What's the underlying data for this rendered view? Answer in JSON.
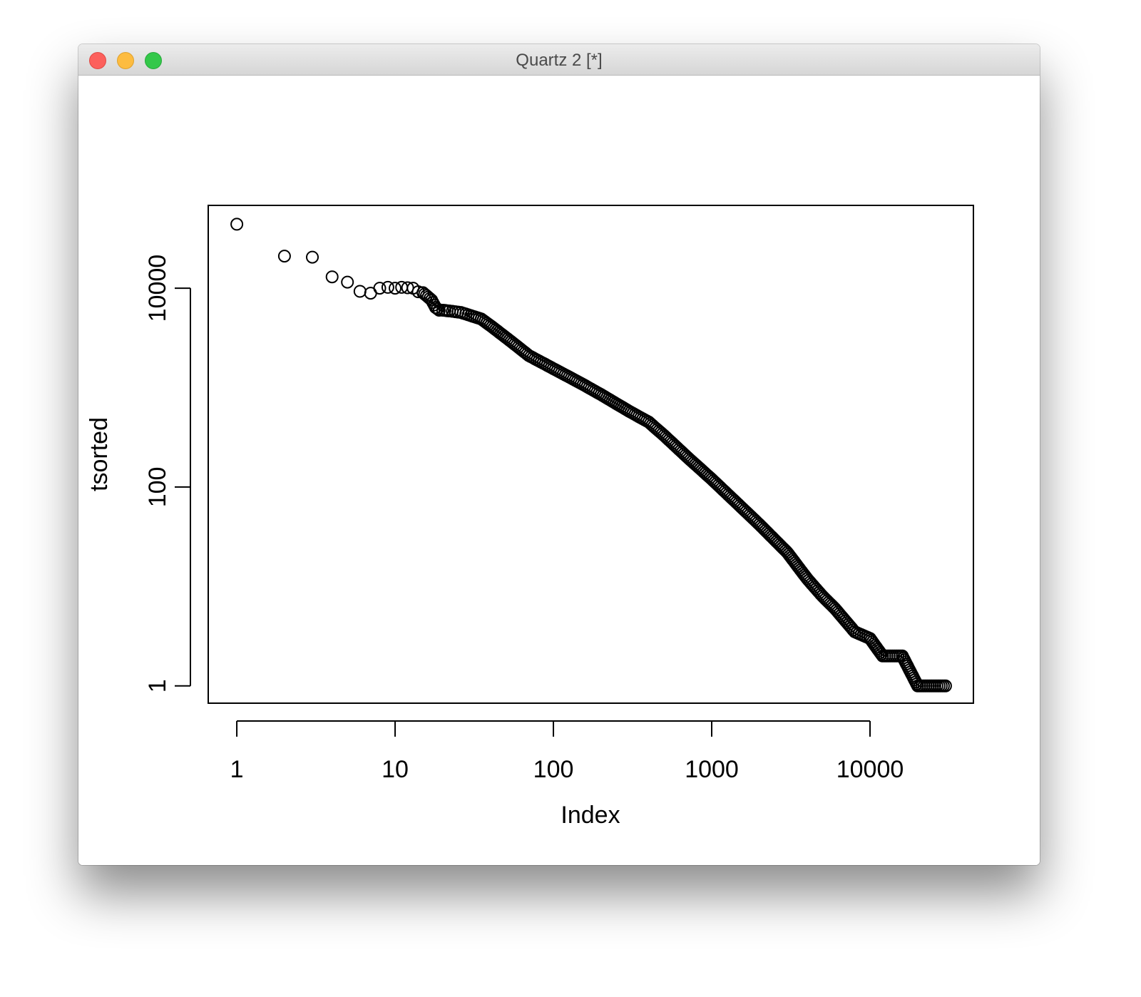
{
  "window": {
    "title": "Quartz 2 [*]",
    "buttons": {
      "close": "close",
      "minimize": "minimize",
      "zoom": "zoom"
    }
  },
  "chart_data": {
    "type": "scatter",
    "xlabel": "Index",
    "ylabel": "tsorted",
    "log_x": true,
    "log_y": true,
    "x_ticks": [
      1,
      10,
      100,
      1000,
      10000
    ],
    "x_tick_labels": [
      "1",
      "10",
      "100",
      "1000",
      "10000"
    ],
    "y_ticks": [
      1,
      100,
      10000
    ],
    "y_tick_labels": [
      "1",
      "100",
      "10000"
    ],
    "xlim": [
      0.66,
      45000
    ],
    "ylim": [
      0.67,
      68000
    ],
    "marker": "open-circle",
    "grid": false,
    "legend": "none",
    "series": [
      {
        "points": [
          [
            1,
            44000
          ],
          [
            2,
            21000
          ],
          [
            3,
            20500
          ],
          [
            4,
            13000
          ],
          [
            5,
            11500
          ],
          [
            6,
            9300
          ],
          [
            7,
            8900
          ],
          [
            8,
            10000
          ],
          [
            9,
            10200
          ],
          [
            10,
            10000
          ],
          [
            11,
            10200
          ],
          [
            12,
            10100
          ],
          [
            13,
            10000
          ],
          [
            14,
            9200
          ],
          [
            15,
            9000
          ],
          [
            17,
            7600
          ],
          [
            18,
            6400
          ],
          [
            19,
            6000
          ],
          [
            20,
            6000
          ],
          [
            22,
            5900
          ],
          [
            24,
            5800
          ],
          [
            26,
            5700
          ],
          [
            30,
            5300
          ],
          [
            35,
            4900
          ],
          [
            40,
            4200
          ],
          [
            50,
            3200
          ],
          [
            70,
            2100
          ],
          [
            100,
            1550
          ],
          [
            150,
            1100
          ],
          [
            200,
            850
          ],
          [
            300,
            580
          ],
          [
            400,
            450
          ],
          [
            500,
            330
          ],
          [
            700,
            200
          ],
          [
            1000,
            120
          ],
          [
            1500,
            65
          ],
          [
            2000,
            42
          ],
          [
            3000,
            22
          ],
          [
            4000,
            12
          ],
          [
            5000,
            8
          ],
          [
            6000,
            6
          ],
          [
            7000,
            4.5
          ],
          [
            8000,
            3.5
          ],
          [
            10000,
            3
          ],
          [
            12000,
            2
          ],
          [
            16000,
            2
          ],
          [
            20000,
            1
          ],
          [
            30000,
            1
          ]
        ]
      }
    ]
  }
}
